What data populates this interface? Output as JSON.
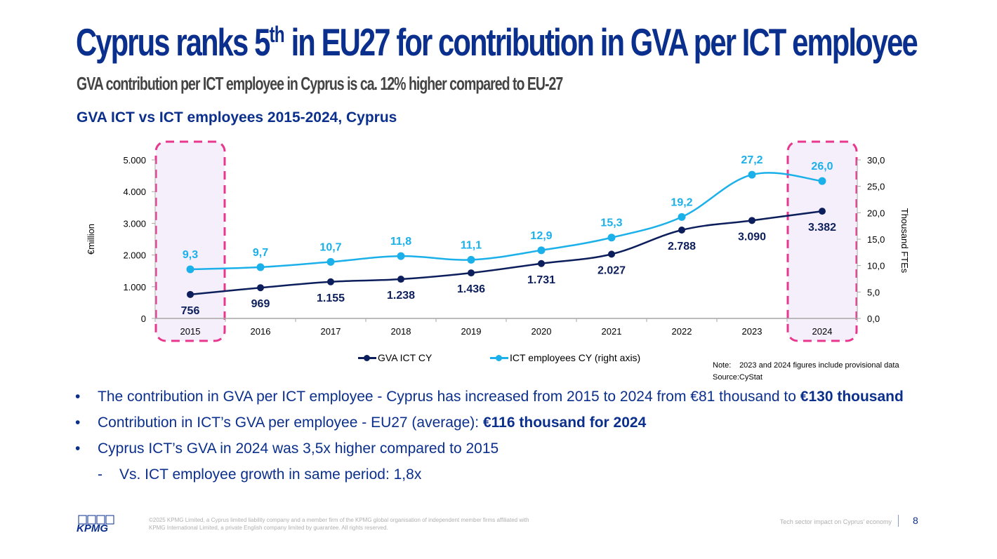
{
  "header": {
    "title_pre": "Cyprus ranks 5",
    "title_sup": "th",
    "title_post": " in EU27 for contribution in GVA per ICT employee",
    "subtitle": "GVA contribution per ICT employee in Cyprus is ca. 12% higher compared to EU-27"
  },
  "chart_data": {
    "type": "line",
    "title": "GVA ICT vs ICT employees 2015-2024, Cyprus",
    "categories": [
      "2015",
      "2016",
      "2017",
      "2018",
      "2019",
      "2020",
      "2021",
      "2022",
      "2023",
      "2024"
    ],
    "series": [
      {
        "name": "GVA ICT CY",
        "axis": "left",
        "color": "#0c1e5b",
        "values": [
          756,
          969,
          1155,
          1238,
          1436,
          1731,
          2027,
          2788,
          3090,
          3382
        ],
        "labels": [
          "756",
          "969",
          "1.155",
          "1.238",
          "1.436",
          "1.731",
          "2.027",
          "2.788",
          "3.090",
          "3.382"
        ]
      },
      {
        "name": "ICT employees CY (right axis)",
        "axis": "right",
        "color": "#1bb0ea",
        "values": [
          9.3,
          9.7,
          10.7,
          11.8,
          11.1,
          12.9,
          15.3,
          19.2,
          27.2,
          26.0
        ],
        "labels": [
          "9,3",
          "9,7",
          "10,7",
          "11,8",
          "11,1",
          "12,9",
          "15,3",
          "19,2",
          "27,2",
          "26,0"
        ]
      }
    ],
    "ylabel": "€million",
    "ylim": [
      0,
      5000
    ],
    "yticks": [
      0,
      1000,
      2000,
      3000,
      4000,
      5000
    ],
    "ytick_labels": [
      "0",
      "1.000",
      "2.000",
      "3.000",
      "4.000",
      "5.000"
    ],
    "y2label": "Thousand FTEs",
    "y2lim": [
      0,
      30
    ],
    "y2ticks": [
      0,
      5,
      10,
      15,
      20,
      25,
      30
    ],
    "y2tick_labels": [
      "0,0",
      "5,0",
      "10,0",
      "15,0",
      "20,0",
      "25,0",
      "30,0"
    ],
    "grid": false,
    "legend_position": "bottom",
    "highlighted_categories": [
      "2015",
      "2024"
    ],
    "highlight_color": "#e8388e",
    "highlight_fill": "#f4effb"
  },
  "notes": {
    "note_label": "Note:",
    "note_text": "2023 and 2024 figures include provisional data",
    "source_label": "Source:",
    "source_text": "CyStat"
  },
  "bullets": [
    {
      "mark": "•",
      "text": "The contribution in GVA per ICT employee - Cyprus has increased from 2015 to 2024 from €81 thousand to ",
      "bold": "€130 thousand"
    },
    {
      "mark": "•",
      "text": "Contribution in ICT’s GVA per employee - EU27 (average): ",
      "bold": "€116 thousand for 2024"
    },
    {
      "mark": "•",
      "text": "Cyprus ICT’s GVA in 2024 was 3,5x higher compared to 2015",
      "bold": ""
    },
    {
      "mark": "-",
      "text": "Vs. ICT employee growth in same period: 1,8x",
      "bold": ""
    }
  ],
  "footer": {
    "logo_text": "KPMG",
    "copyright": "©2025 KPMG Limited, a Cyprus limited liability company and a member firm of the KPMG global organisation of independent member firms affiliated with KPMG International Limited, a private English company limited by guarantee. All rights reserved.",
    "deck_title": "Tech sector impact on Cyprus’ economy",
    "page_number": "8"
  },
  "colors": {
    "brand_blue": "#0b2f8c",
    "gva_line": "#0c1e5b",
    "employees_line": "#1bb0ea",
    "highlight": "#e8388e"
  }
}
